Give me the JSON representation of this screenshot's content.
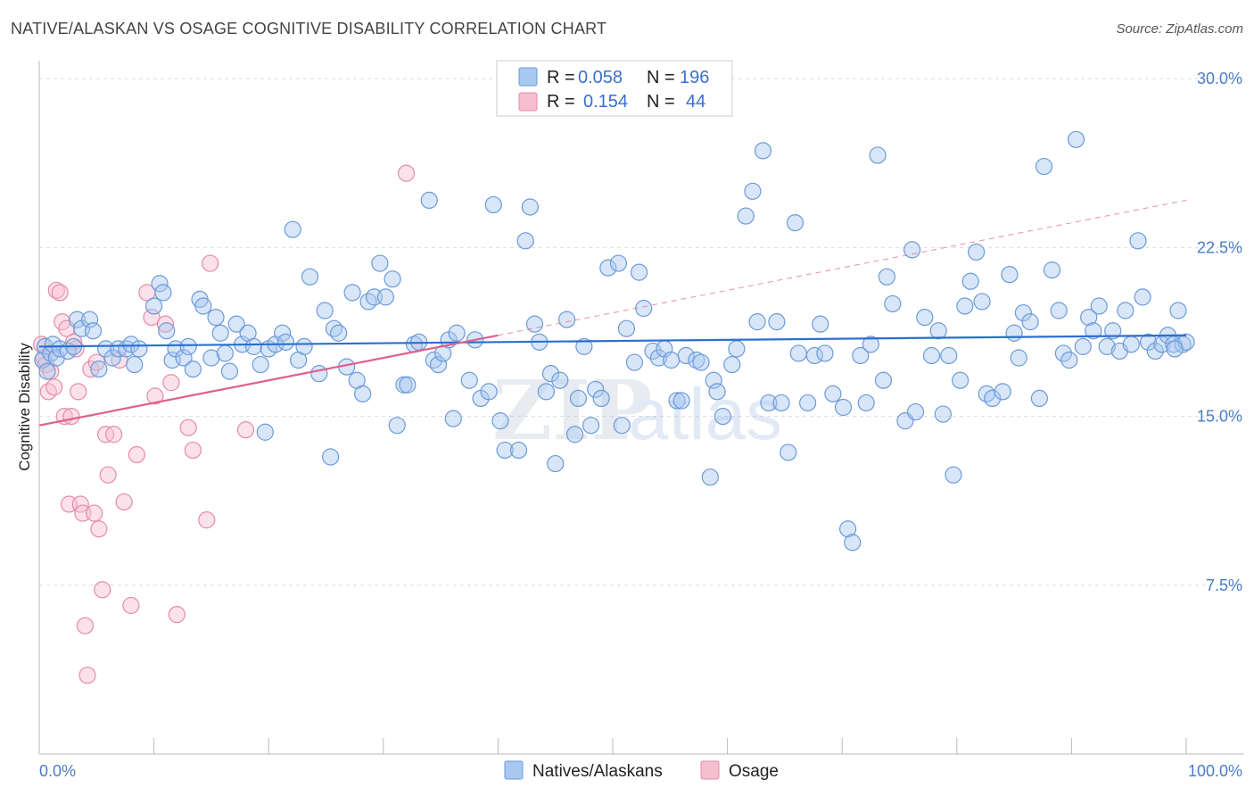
{
  "title": "NATIVE/ALASKAN VS OSAGE COGNITIVE DISABILITY CORRELATION CHART",
  "source": "Source: ZipAtlas.com",
  "watermark": {
    "part1": "ZIP",
    "part2": "atlas"
  },
  "colors": {
    "blue_fill": "#a9c8f0",
    "blue_stroke": "#6b9ad8",
    "blue_line": "#2b6fcf",
    "pink_fill": "#f6bfd0",
    "pink_stroke": "#e88aa8",
    "pink_line": "#e0608a",
    "grid": "#dddddd",
    "tick_label": "#4a7cc9"
  },
  "chart_data": {
    "type": "scatter",
    "xlabel": "",
    "ylabel": "Cognitive Disability",
    "xlim": [
      0,
      100
    ],
    "ylim": [
      0,
      30.8
    ],
    "x_tick_labels": [
      {
        "value": 0,
        "label": "0.0%"
      },
      {
        "value": 100,
        "label": "100.0%"
      }
    ],
    "y_ticks": [
      {
        "value": 7.5,
        "label": "7.5%"
      },
      {
        "value": 15.0,
        "label": "15.0%"
      },
      {
        "value": 22.5,
        "label": "22.5%"
      },
      {
        "value": 30.0,
        "label": "30.0%"
      }
    ],
    "legend": {
      "entries": [
        {
          "series": "Natives/Alaskans",
          "r_label": "R =",
          "r_value": "0.058",
          "n_label": "N =",
          "n_value": "196"
        },
        {
          "series": "Osage",
          "r_label": "R =",
          "r_value": "0.154",
          "n_label": "N =",
          "n_value": "44"
        }
      ]
    },
    "bottom_legend": [
      "Natives/Alaskans",
      "Osage"
    ],
    "series": [
      {
        "name": "Natives/Alaskans",
        "color": "blue",
        "trend": {
          "x": [
            0,
            100
          ],
          "y": [
            18.1,
            18.6
          ],
          "dashed_extension": false
        },
        "points": [
          [
            0.3,
            17.5
          ],
          [
            0.5,
            18.1
          ],
          [
            0.7,
            17.0
          ],
          [
            1.0,
            17.8
          ],
          [
            1.2,
            18.2
          ],
          [
            1.5,
            17.6
          ],
          [
            1.8,
            18.0
          ],
          [
            2.5,
            17.9
          ],
          [
            3.0,
            18.1
          ],
          [
            3.3,
            19.3
          ],
          [
            3.7,
            18.9
          ],
          [
            4.4,
            19.3
          ],
          [
            4.7,
            18.8
          ],
          [
            5.2,
            17.1
          ],
          [
            5.8,
            18.0
          ],
          [
            6.4,
            17.6
          ],
          [
            6.9,
            18.0
          ],
          [
            7.6,
            18.0
          ],
          [
            8.0,
            18.2
          ],
          [
            8.3,
            17.3
          ],
          [
            8.7,
            18.0
          ],
          [
            10.0,
            19.9
          ],
          [
            10.5,
            20.9
          ],
          [
            10.8,
            20.5
          ],
          [
            11.1,
            18.8
          ],
          [
            11.6,
            17.5
          ],
          [
            11.9,
            18.0
          ],
          [
            12.6,
            17.6
          ],
          [
            13.0,
            18.1
          ],
          [
            13.4,
            17.1
          ],
          [
            14.0,
            20.2
          ],
          [
            14.3,
            19.9
          ],
          [
            15.0,
            17.6
          ],
          [
            15.4,
            19.4
          ],
          [
            15.8,
            18.7
          ],
          [
            16.2,
            17.8
          ],
          [
            16.6,
            17.0
          ],
          [
            17.2,
            19.1
          ],
          [
            17.7,
            18.2
          ],
          [
            18.2,
            18.7
          ],
          [
            18.7,
            18.1
          ],
          [
            19.3,
            17.3
          ],
          [
            19.7,
            14.3
          ],
          [
            20.0,
            18.0
          ],
          [
            20.6,
            18.2
          ],
          [
            21.2,
            18.7
          ],
          [
            21.5,
            18.3
          ],
          [
            22.1,
            23.3
          ],
          [
            22.6,
            17.5
          ],
          [
            23.1,
            18.1
          ],
          [
            23.6,
            21.2
          ],
          [
            24.4,
            16.9
          ],
          [
            24.9,
            19.7
          ],
          [
            25.4,
            13.2
          ],
          [
            25.7,
            18.9
          ],
          [
            26.1,
            18.7
          ],
          [
            26.8,
            17.2
          ],
          [
            27.3,
            20.5
          ],
          [
            27.7,
            16.6
          ],
          [
            28.2,
            16.0
          ],
          [
            28.7,
            20.1
          ],
          [
            29.2,
            20.3
          ],
          [
            29.7,
            21.8
          ],
          [
            30.2,
            20.3
          ],
          [
            30.8,
            21.1
          ],
          [
            31.2,
            14.6
          ],
          [
            31.8,
            16.4
          ],
          [
            32.1,
            16.4
          ],
          [
            32.7,
            18.2
          ],
          [
            33.1,
            18.3
          ],
          [
            34.0,
            24.6
          ],
          [
            34.4,
            17.5
          ],
          [
            34.8,
            17.3
          ],
          [
            35.2,
            17.8
          ],
          [
            35.7,
            18.4
          ],
          [
            36.1,
            14.9
          ],
          [
            36.4,
            18.7
          ],
          [
            37.5,
            16.6
          ],
          [
            38.0,
            18.4
          ],
          [
            38.5,
            15.8
          ],
          [
            39.2,
            16.1
          ],
          [
            39.6,
            24.4
          ],
          [
            40.2,
            14.8
          ],
          [
            40.6,
            13.5
          ],
          [
            41.8,
            13.5
          ],
          [
            42.4,
            22.8
          ],
          [
            42.8,
            24.3
          ],
          [
            43.2,
            19.1
          ],
          [
            43.6,
            18.3
          ],
          [
            44.2,
            16.1
          ],
          [
            44.6,
            16.9
          ],
          [
            45.0,
            12.9
          ],
          [
            45.4,
            16.6
          ],
          [
            46.0,
            19.3
          ],
          [
            46.7,
            14.2
          ],
          [
            47.0,
            15.8
          ],
          [
            47.5,
            18.1
          ],
          [
            48.1,
            14.6
          ],
          [
            48.5,
            16.2
          ],
          [
            49.0,
            15.8
          ],
          [
            49.6,
            21.6
          ],
          [
            50.5,
            21.8
          ],
          [
            50.8,
            14.6
          ],
          [
            51.2,
            18.9
          ],
          [
            51.9,
            17.4
          ],
          [
            52.3,
            21.4
          ],
          [
            52.7,
            19.8
          ],
          [
            53.5,
            17.9
          ],
          [
            54.0,
            17.6
          ],
          [
            54.5,
            18.0
          ],
          [
            55.1,
            17.5
          ],
          [
            55.6,
            15.7
          ],
          [
            56.0,
            15.7
          ],
          [
            56.4,
            17.7
          ],
          [
            57.3,
            17.5
          ],
          [
            57.7,
            17.4
          ],
          [
            58.5,
            12.3
          ],
          [
            58.8,
            16.6
          ],
          [
            59.1,
            16.1
          ],
          [
            59.6,
            15.0
          ],
          [
            60.4,
            17.3
          ],
          [
            60.8,
            18.0
          ],
          [
            61.6,
            23.9
          ],
          [
            62.2,
            25.0
          ],
          [
            62.6,
            19.2
          ],
          [
            63.1,
            26.8
          ],
          [
            63.6,
            15.6
          ],
          [
            64.3,
            19.2
          ],
          [
            64.7,
            15.6
          ],
          [
            65.3,
            13.4
          ],
          [
            65.9,
            23.6
          ],
          [
            66.2,
            17.8
          ],
          [
            67.0,
            15.6
          ],
          [
            67.6,
            17.7
          ],
          [
            68.1,
            19.1
          ],
          [
            68.5,
            17.8
          ],
          [
            69.2,
            16.0
          ],
          [
            70.1,
            15.4
          ],
          [
            70.5,
            10.0
          ],
          [
            70.9,
            9.4
          ],
          [
            71.6,
            17.7
          ],
          [
            72.1,
            15.6
          ],
          [
            72.5,
            18.2
          ],
          [
            73.1,
            26.6
          ],
          [
            73.6,
            16.6
          ],
          [
            73.9,
            21.2
          ],
          [
            74.4,
            20.0
          ],
          [
            75.5,
            14.8
          ],
          [
            76.1,
            22.4
          ],
          [
            76.4,
            15.2
          ],
          [
            77.2,
            19.4
          ],
          [
            77.8,
            17.7
          ],
          [
            78.4,
            18.8
          ],
          [
            78.8,
            15.1
          ],
          [
            79.3,
            17.7
          ],
          [
            79.7,
            12.4
          ],
          [
            80.3,
            16.6
          ],
          [
            80.7,
            19.9
          ],
          [
            81.2,
            21.0
          ],
          [
            81.7,
            22.3
          ],
          [
            82.2,
            20.1
          ],
          [
            82.6,
            16.0
          ],
          [
            83.1,
            15.8
          ],
          [
            84.0,
            16.1
          ],
          [
            84.6,
            21.3
          ],
          [
            85.0,
            18.7
          ],
          [
            85.4,
            17.6
          ],
          [
            85.8,
            19.6
          ],
          [
            86.4,
            19.2
          ],
          [
            87.2,
            15.8
          ],
          [
            87.6,
            26.1
          ],
          [
            88.3,
            21.5
          ],
          [
            88.9,
            19.7
          ],
          [
            89.3,
            17.8
          ],
          [
            89.8,
            17.5
          ],
          [
            90.4,
            27.3
          ],
          [
            91.0,
            18.1
          ],
          [
            91.5,
            19.4
          ],
          [
            91.9,
            18.8
          ],
          [
            92.4,
            19.9
          ],
          [
            93.1,
            18.1
          ],
          [
            93.6,
            18.8
          ],
          [
            94.2,
            17.9
          ],
          [
            94.7,
            19.7
          ],
          [
            95.2,
            18.2
          ],
          [
            95.8,
            22.8
          ],
          [
            96.2,
            20.3
          ],
          [
            96.7,
            18.3
          ],
          [
            97.3,
            17.9
          ],
          [
            97.9,
            18.2
          ],
          [
            98.4,
            18.6
          ],
          [
            98.9,
            18.2
          ],
          [
            99.3,
            19.7
          ],
          [
            99.7,
            18.2
          ],
          [
            100.0,
            18.3
          ],
          [
            99.0,
            18.0
          ]
        ]
      },
      {
        "name": "Osage",
        "color": "pink",
        "trend": {
          "x": [
            0,
            40
          ],
          "y": [
            14.6,
            18.6
          ],
          "dashed_extension": {
            "x": [
              40,
              100
            ],
            "y": [
              18.6,
              24.6
            ]
          }
        },
        "points": [
          [
            0.2,
            18.2
          ],
          [
            0.4,
            17.6
          ],
          [
            0.6,
            17.3
          ],
          [
            0.8,
            16.1
          ],
          [
            1.0,
            17.0
          ],
          [
            1.3,
            16.3
          ],
          [
            1.5,
            20.6
          ],
          [
            1.8,
            20.5
          ],
          [
            2.0,
            19.2
          ],
          [
            2.2,
            15.0
          ],
          [
            2.4,
            18.9
          ],
          [
            2.6,
            11.1
          ],
          [
            2.8,
            15.0
          ],
          [
            3.0,
            18.3
          ],
          [
            3.2,
            18.0
          ],
          [
            3.4,
            16.1
          ],
          [
            3.6,
            11.1
          ],
          [
            3.8,
            10.7
          ],
          [
            4.0,
            5.7
          ],
          [
            4.2,
            3.5
          ],
          [
            4.5,
            17.1
          ],
          [
            4.8,
            10.7
          ],
          [
            5.0,
            17.4
          ],
          [
            5.2,
            10.0
          ],
          [
            5.5,
            7.3
          ],
          [
            5.8,
            14.2
          ],
          [
            6.0,
            12.4
          ],
          [
            6.5,
            14.2
          ],
          [
            7.0,
            17.5
          ],
          [
            7.4,
            11.2
          ],
          [
            8.0,
            6.6
          ],
          [
            8.5,
            13.3
          ],
          [
            9.4,
            20.5
          ],
          [
            9.8,
            19.4
          ],
          [
            10.1,
            15.9
          ],
          [
            11.0,
            19.1
          ],
          [
            11.5,
            16.5
          ],
          [
            12.0,
            6.2
          ],
          [
            13.0,
            14.5
          ],
          [
            13.4,
            13.5
          ],
          [
            14.6,
            10.4
          ],
          [
            14.9,
            21.8
          ],
          [
            18.0,
            14.4
          ],
          [
            32.0,
            25.8
          ]
        ]
      }
    ]
  }
}
